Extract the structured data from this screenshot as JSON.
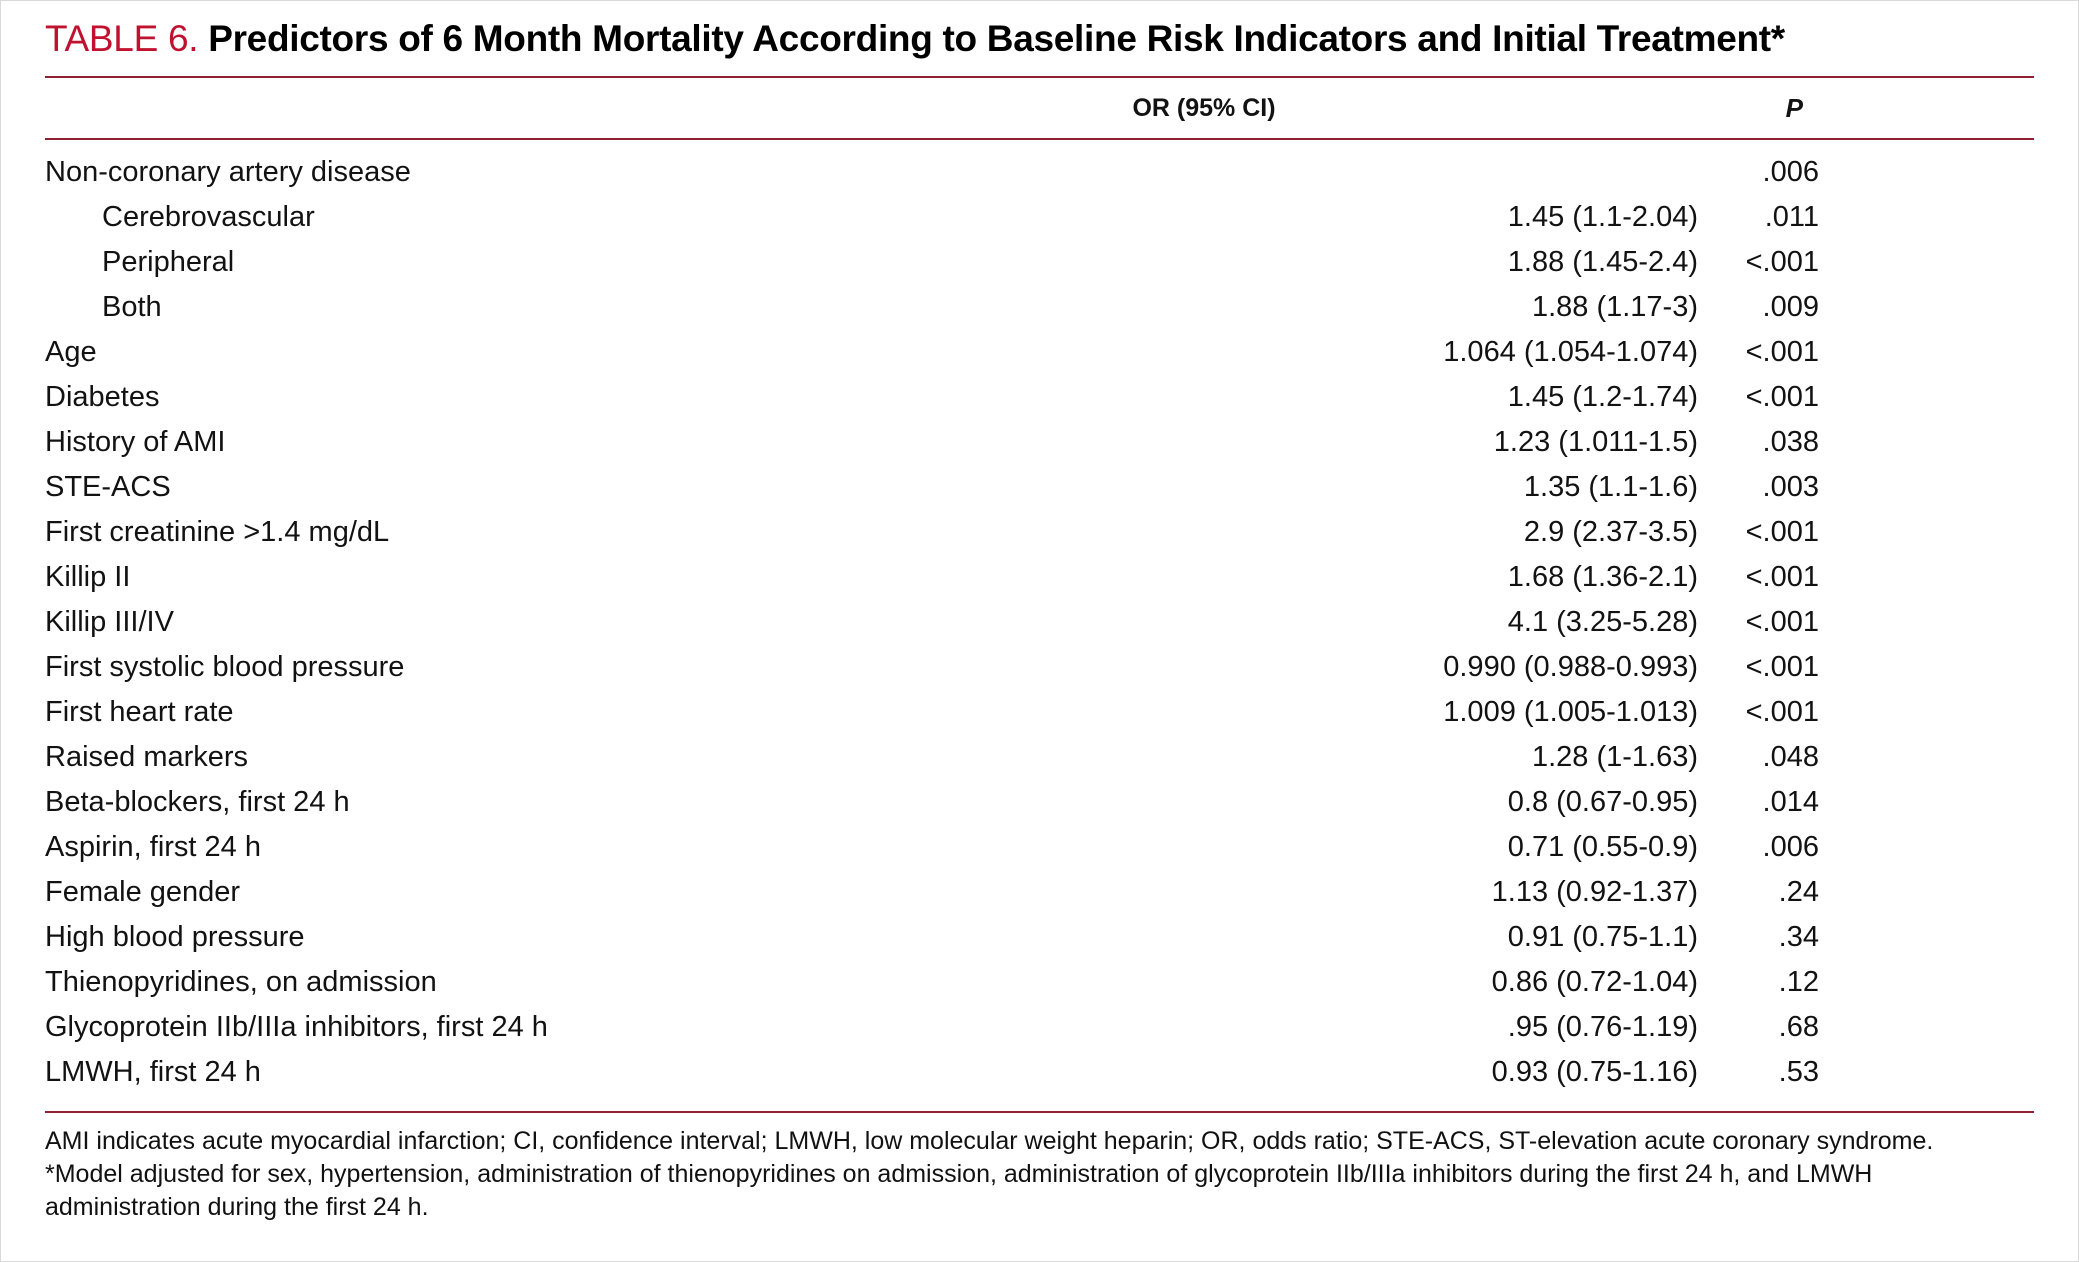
{
  "title": {
    "label": "TABLE 6.",
    "text": "Predictors of 6 Month Mortality According to Baseline Risk Indicators and Initial Treatment*"
  },
  "table": {
    "columns": {
      "or": "OR (95% CI)",
      "p": "P"
    },
    "rows": [
      {
        "label": "Non-coronary artery disease",
        "indent": false,
        "or": "",
        "p": ".006"
      },
      {
        "label": "Cerebrovascular",
        "indent": true,
        "or": "1.45 (1.1-2.04)",
        "p": ".011"
      },
      {
        "label": "Peripheral",
        "indent": true,
        "or": "1.88 (1.45-2.4)",
        "p": "<.001"
      },
      {
        "label": "Both",
        "indent": true,
        "or": "1.88 (1.17-3)",
        "p": ".009"
      },
      {
        "label": "Age",
        "indent": false,
        "or": "1.064 (1.054-1.074)",
        "p": "<.001"
      },
      {
        "label": "Diabetes",
        "indent": false,
        "or": "1.45 (1.2-1.74)",
        "p": "<.001"
      },
      {
        "label": "History of AMI",
        "indent": false,
        "or": "1.23 (1.011-1.5)",
        "p": ".038"
      },
      {
        "label": "STE-ACS",
        "indent": false,
        "or": "1.35 (1.1-1.6)",
        "p": ".003"
      },
      {
        "label": "First creatinine >1.4 mg/dL",
        "indent": false,
        "or": "2.9 (2.37-3.5)",
        "p": "<.001"
      },
      {
        "label": "Killip II",
        "indent": false,
        "or": "1.68 (1.36-2.1)",
        "p": "<.001"
      },
      {
        "label": "Killip III/IV",
        "indent": false,
        "or": "4.1 (3.25-5.28)",
        "p": "<.001"
      },
      {
        "label": "First systolic blood pressure",
        "indent": false,
        "or": "0.990 (0.988-0.993)",
        "p": "<.001"
      },
      {
        "label": "First heart rate",
        "indent": false,
        "or": "1.009 (1.005-1.013)",
        "p": "<.001"
      },
      {
        "label": "Raised markers",
        "indent": false,
        "or": "1.28 (1-1.63)",
        "p": ".048"
      },
      {
        "label": "Beta-blockers, first 24 h",
        "indent": false,
        "or": "0.8 (0.67-0.95)",
        "p": ".014"
      },
      {
        "label": "Aspirin, first 24 h",
        "indent": false,
        "or": "0.71 (0.55-0.9)",
        "p": ".006"
      },
      {
        "label": "Female gender",
        "indent": false,
        "or": "1.13 (0.92-1.37)",
        "p": ".24"
      },
      {
        "label": "High blood pressure",
        "indent": false,
        "or": "0.91 (0.75-1.1)",
        "p": ".34"
      },
      {
        "label": "Thienopyridines, on admission",
        "indent": false,
        "or": "0.86 (0.72-1.04)",
        "p": ".12"
      },
      {
        "label": "Glycoprotein IIb/IIIa inhibitors, first 24 h",
        "indent": false,
        "or": ".95 (0.76-1.19)",
        "p": ".68"
      },
      {
        "label": "LMWH, first 24 h",
        "indent": false,
        "or": "0.93 (0.75-1.16)",
        "p": ".53"
      }
    ]
  },
  "footnotes": [
    "AMI indicates acute myocardial infarction; CI, confidence interval; LMWH, low molecular weight heparin; OR, odds ratio; STE-ACS, ST-elevation acute coronary syndrome.",
    "*Model adjusted for sex, hypertension, administration of thienopyridines on admission, administration of glycoprotein IIb/IIIa inhibitors during the first 24 h, and LMWH administration during the first 24 h."
  ],
  "colors": {
    "accent_red": "#c0122f",
    "rule": "#8e2031"
  }
}
